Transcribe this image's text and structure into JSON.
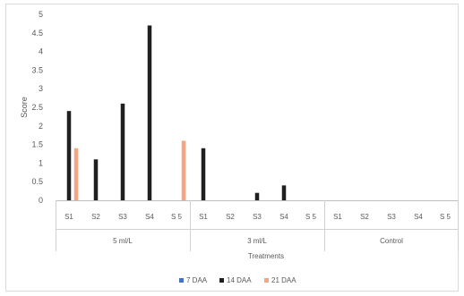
{
  "chart_data": {
    "type": "bar",
    "title": "",
    "xlabel": "Treatments",
    "ylabel": "Score",
    "ylim": [
      0,
      5
    ],
    "y_ticks": [
      "0",
      "0.5",
      "1",
      "1.5",
      "2",
      "2.5",
      "3",
      "3.5",
      "4",
      "4.5",
      "5"
    ],
    "groups": [
      {
        "label": "5 ml/L",
        "categories": [
          "S1",
          "S2",
          "S3",
          "S4",
          "S 5"
        ]
      },
      {
        "label": "3 ml/L",
        "categories": [
          "S1",
          "S2",
          "S3",
          "S4",
          "S 5"
        ]
      },
      {
        "label": "Control",
        "categories": [
          "S1",
          "S2",
          "S3",
          "S4",
          "S 5"
        ]
      }
    ],
    "series": [
      {
        "name": "7 DAA",
        "color": "#4472c4",
        "values": [
          0,
          0,
          0,
          0,
          0,
          0,
          0,
          0,
          0,
          0,
          0,
          0,
          0,
          0,
          0
        ]
      },
      {
        "name": "14 DAA",
        "color": "#1f1f1f",
        "values": [
          2.4,
          1.1,
          2.6,
          4.7,
          0,
          1.4,
          0,
          0.2,
          0.4,
          0,
          0,
          0,
          0,
          0,
          0
        ]
      },
      {
        "name": "21 DAA",
        "color": "#f4a582",
        "values": [
          1.4,
          0,
          0,
          0,
          1.6,
          0,
          0,
          0,
          0,
          0,
          0,
          0,
          0,
          0,
          0
        ]
      }
    ],
    "grid": false,
    "legend_position": "bottom"
  }
}
